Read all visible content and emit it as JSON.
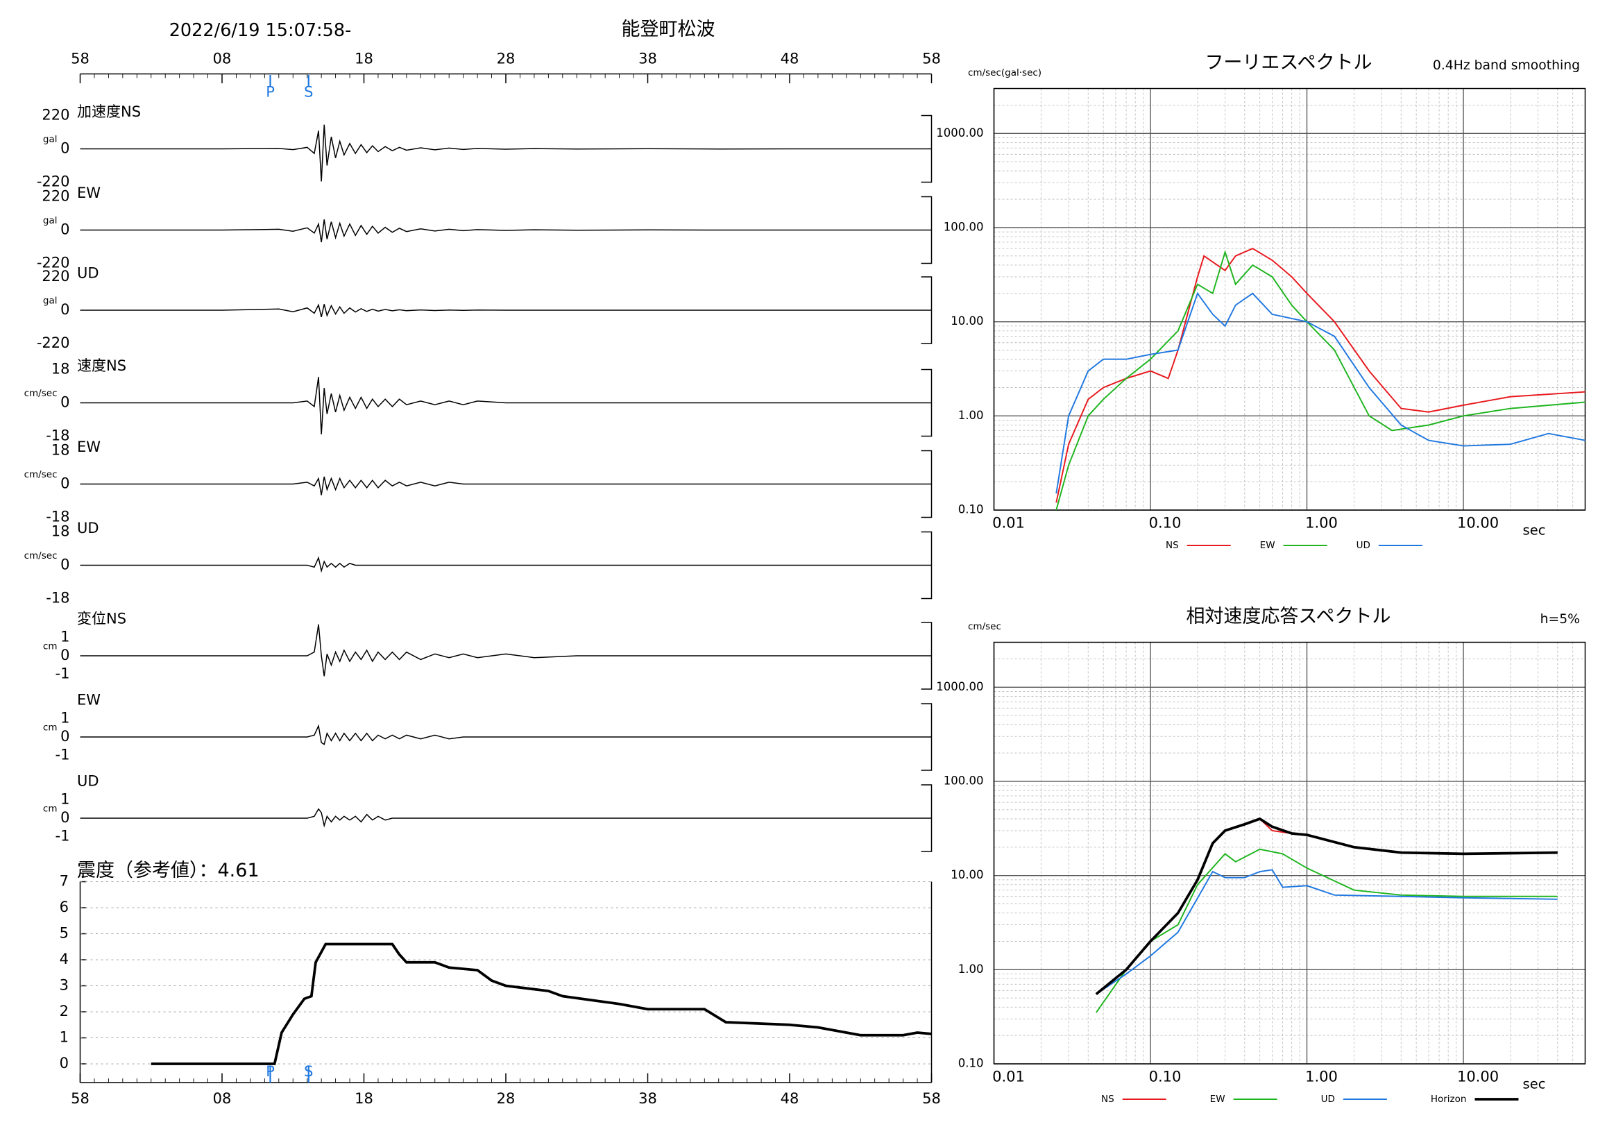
{
  "chart_data": [
    {
      "type": "waveform",
      "title": "2022/6/19 15:07:58-",
      "subtitle": "能登町松波",
      "xlim": [
        0,
        60
      ],
      "xticks": [
        {
          "value": 0,
          "label": "58"
        },
        {
          "value": 10,
          "label": "08"
        },
        {
          "value": 20,
          "label": "18"
        },
        {
          "value": 30,
          "label": "28"
        },
        {
          "value": 40,
          "label": "38"
        },
        {
          "value": 50,
          "label": "48"
        },
        {
          "value": 60,
          "label": "58"
        }
      ],
      "phase_marks": [
        {
          "value": 13.4,
          "label": "P"
        },
        {
          "value": 16.1,
          "label": "S"
        }
      ],
      "x": [
        0,
        10,
        14,
        15,
        16,
        16.5,
        16.8,
        17.0,
        17.2,
        17.4,
        17.7,
        18,
        18.3,
        18.6,
        19,
        19.4,
        19.8,
        20.2,
        20.6,
        21,
        21.5,
        22,
        22.5,
        23,
        24,
        25,
        26,
        27,
        28,
        30,
        32,
        35,
        40,
        45,
        50,
        55,
        60
      ],
      "panels": [
        {
          "label": "加速度NS",
          "unit": "gal",
          "ylim": [
            -220,
            220
          ],
          "yticks": [
            220,
            0,
            -220
          ],
          "values": [
            0,
            0,
            3,
            -5,
            10,
            -30,
            120,
            -215,
            160,
            -110,
            80,
            -60,
            50,
            -40,
            35,
            -30,
            28,
            -25,
            20,
            -18,
            15,
            -12,
            10,
            -9,
            7,
            -6,
            5,
            -4,
            3,
            -2,
            2,
            -1,
            1,
            -1,
            0,
            0,
            0
          ]
        },
        {
          "label": "EW",
          "unit": "gal",
          "ylim": [
            -220,
            220
          ],
          "yticks": [
            220,
            0,
            -220
          ],
          "values": [
            0,
            0,
            5,
            -8,
            15,
            -20,
            40,
            -80,
            70,
            -60,
            55,
            -50,
            45,
            -40,
            40,
            -35,
            30,
            -28,
            25,
            -20,
            18,
            -15,
            12,
            -10,
            8,
            -6,
            5,
            -4,
            3,
            -2,
            2,
            -1,
            1,
            0,
            0,
            0,
            0
          ]
        },
        {
          "label": "UD",
          "unit": "gal",
          "ylim": [
            -220,
            220
          ],
          "yticks": [
            220,
            0,
            -220
          ],
          "values": [
            0,
            0,
            8,
            -10,
            15,
            -20,
            35,
            -45,
            40,
            -35,
            30,
            -25,
            22,
            -20,
            15,
            -12,
            10,
            -8,
            7,
            -6,
            5,
            -4,
            3,
            -3,
            2,
            -2,
            1,
            -1,
            1,
            0,
            0,
            0,
            0,
            0,
            0,
            0,
            0
          ]
        },
        {
          "label": "速度NS",
          "unit": "cm/sec",
          "ylim": [
            -18,
            18
          ],
          "yticks": [
            18,
            0,
            -18
          ],
          "values": [
            0,
            0,
            0,
            0,
            1,
            -2,
            14,
            -17,
            8,
            -6,
            5,
            -5,
            4,
            -4,
            3,
            -3,
            3,
            -3,
            2,
            -2,
            2,
            -2,
            2,
            -1,
            1,
            -1,
            1,
            -1,
            1,
            0,
            0,
            0,
            0,
            0,
            0,
            0,
            0
          ]
        },
        {
          "label": "EW",
          "unit": "cm/sec",
          "ylim": [
            -18,
            18
          ],
          "yticks": [
            18,
            0,
            -18
          ],
          "values": [
            0,
            0,
            0,
            0,
            1,
            -1,
            3,
            -6,
            4,
            -3,
            3,
            -3,
            3,
            -2,
            2,
            -2,
            2,
            -2,
            2,
            -2,
            2,
            -1,
            1,
            -1,
            1,
            -1,
            1,
            0,
            0,
            0,
            0,
            0,
            0,
            0,
            0,
            0,
            0
          ]
        },
        {
          "label": "UD",
          "unit": "cm/sec",
          "ylim": [
            -18,
            18
          ],
          "yticks": [
            18,
            0,
            -18
          ],
          "values": [
            0,
            0,
            0,
            0,
            0,
            -1,
            4,
            -3,
            2,
            -1,
            1,
            -1,
            1,
            -1,
            1,
            0,
            0,
            0,
            0,
            0,
            0,
            0,
            0,
            0,
            0,
            0,
            0,
            0,
            0,
            0,
            0,
            0,
            0,
            0,
            0,
            0,
            0
          ]
        },
        {
          "label": "変位NS",
          "unit": "cm",
          "ylim": [
            -1.8,
            1.8
          ],
          "yticks": [
            1,
            0,
            -1
          ],
          "values": [
            0,
            0,
            0,
            0,
            0,
            0.2,
            1.7,
            0,
            -1.1,
            0.1,
            -0.5,
            0.2,
            -0.3,
            0.3,
            -0.3,
            0.2,
            -0.2,
            0.3,
            -0.3,
            0.2,
            -0.2,
            0.2,
            -0.2,
            0.2,
            -0.2,
            0.1,
            -0.1,
            0.1,
            -0.1,
            0.1,
            -0.1,
            0,
            0,
            0,
            0,
            0,
            0
          ]
        },
        {
          "label": "EW",
          "unit": "cm",
          "ylim": [
            -1.8,
            1.8
          ],
          "yticks": [
            1,
            0,
            -1
          ],
          "values": [
            0,
            0,
            0,
            0,
            0,
            0.1,
            0.6,
            -0.3,
            -0.4,
            0.2,
            -0.2,
            0.2,
            -0.2,
            0.2,
            -0.2,
            0.2,
            -0.2,
            0.2,
            -0.2,
            0.1,
            -0.1,
            0.1,
            -0.1,
            0.1,
            -0.1,
            0.1,
            -0.1,
            0,
            0,
            0,
            0,
            0,
            0,
            0,
            0,
            0,
            0
          ]
        },
        {
          "label": "UD",
          "unit": "cm",
          "ylim": [
            -1.8,
            1.8
          ],
          "yticks": [
            1,
            0,
            -1
          ],
          "values": [
            0,
            0,
            0,
            0,
            0,
            0.1,
            0.5,
            0.3,
            -0.4,
            0.1,
            -0.2,
            0.1,
            -0.1,
            0.1,
            -0.1,
            0.1,
            -0.2,
            0.2,
            -0.1,
            0.1,
            -0.1,
            0,
            0,
            0,
            0,
            0,
            0,
            0,
            0,
            0,
            0,
            0,
            0,
            0,
            0,
            0,
            0
          ]
        }
      ]
    },
    {
      "type": "line",
      "title": "震度（参考値）：4.61",
      "color": "#000000",
      "xlim": [
        0,
        60
      ],
      "xticks": [
        {
          "value": 0,
          "label": "58"
        },
        {
          "value": 10,
          "label": "08"
        },
        {
          "value": 20,
          "label": "18"
        },
        {
          "value": 30,
          "label": "28"
        },
        {
          "value": 40,
          "label": "38"
        },
        {
          "value": 50,
          "label": "48"
        },
        {
          "value": 60,
          "label": "58"
        }
      ],
      "phase_marks": [
        {
          "value": 13.4,
          "label": "P"
        },
        {
          "value": 16.1,
          "label": "S"
        }
      ],
      "ylim": [
        0,
        7
      ],
      "yticks": [
        0,
        1,
        2,
        3,
        4,
        5,
        6,
        7
      ],
      "grid": true,
      "x": [
        5,
        13.7,
        14.2,
        15,
        15.8,
        16.3,
        16.6,
        17,
        17.3,
        22,
        22.5,
        23,
        25,
        26,
        28,
        29,
        30,
        33,
        34,
        38,
        40,
        44,
        45.5,
        50,
        52,
        55,
        58,
        59,
        60
      ],
      "values": [
        0,
        0,
        1.2,
        1.9,
        2.5,
        2.6,
        3.9,
        4.3,
        4.6,
        4.6,
        4.2,
        3.9,
        3.9,
        3.7,
        3.6,
        3.2,
        3.0,
        2.8,
        2.6,
        2.3,
        2.1,
        2.1,
        1.6,
        1.5,
        1.4,
        1.1,
        1.1,
        1.2,
        1.15
      ]
    },
    {
      "type": "spectrum",
      "title": "フーリエスペクトル",
      "subtitle": "0.4Hz band smoothing",
      "y_label": "cm/sec(gal·sec)",
      "x_label": "sec",
      "log_x": true,
      "log_y": true,
      "grid": true,
      "xlim": [
        0.01,
        60
      ],
      "xticks": [
        {
          "value": 0.01,
          "label": "0.01"
        },
        {
          "value": 0.1,
          "label": "0.10"
        },
        {
          "value": 1,
          "label": "1.00"
        },
        {
          "value": 10,
          "label": "10.00"
        }
      ],
      "ylim": [
        0.1,
        3000
      ],
      "yticks": [
        {
          "value": 0.1,
          "label": "0.10"
        },
        {
          "value": 1,
          "label": "1.00"
        },
        {
          "value": 10,
          "label": "10.00"
        },
        {
          "value": 100,
          "label": "100.00"
        },
        {
          "value": 1000,
          "label": "1000.00"
        }
      ],
      "series": [
        {
          "name": "NS",
          "color": "#e8191e",
          "x": [
            0.025,
            0.03,
            0.04,
            0.05,
            0.07,
            0.1,
            0.13,
            0.15,
            0.2,
            0.22,
            0.3,
            0.35,
            0.45,
            0.6,
            0.8,
            1.0,
            1.5,
            2.5,
            4,
            6,
            10,
            20,
            60
          ],
          "values": [
            0.12,
            0.5,
            1.5,
            2,
            2.5,
            3,
            2.5,
            5,
            30,
            50,
            35,
            50,
            60,
            45,
            30,
            20,
            10,
            3,
            1.2,
            1.1,
            1.3,
            1.6,
            1.8
          ]
        },
        {
          "name": "EW",
          "color": "#1fb51f",
          "x": [
            0.025,
            0.03,
            0.04,
            0.05,
            0.07,
            0.1,
            0.15,
            0.2,
            0.25,
            0.3,
            0.35,
            0.45,
            0.6,
            0.8,
            1,
            1.5,
            2.5,
            3.5,
            6,
            10,
            20,
            60
          ],
          "values": [
            0.1,
            0.3,
            1,
            1.5,
            2.5,
            4,
            8,
            25,
            20,
            55,
            25,
            40,
            30,
            15,
            10,
            5,
            1,
            0.7,
            0.8,
            1,
            1.2,
            1.4
          ]
        },
        {
          "name": "UD",
          "color": "#1f78e0",
          "x": [
            0.025,
            0.03,
            0.04,
            0.05,
            0.07,
            0.1,
            0.15,
            0.2,
            0.25,
            0.3,
            0.35,
            0.45,
            0.6,
            1,
            1.5,
            2.5,
            4,
            6,
            10,
            20,
            35,
            60
          ],
          "values": [
            0.15,
            1,
            3,
            4,
            4,
            4.5,
            5,
            20,
            12,
            9,
            15,
            20,
            12,
            10,
            7,
            2,
            0.8,
            0.55,
            0.48,
            0.5,
            0.65,
            0.55
          ]
        }
      ]
    },
    {
      "type": "spectrum",
      "title": "相対速度応答スペクトル",
      "subtitle": "h=5%",
      "y_label": "cm/sec",
      "x_label": "sec",
      "log_x": true,
      "log_y": true,
      "grid": true,
      "xlim": [
        0.01,
        60
      ],
      "xticks": [
        {
          "value": 0.01,
          "label": "0.01"
        },
        {
          "value": 0.1,
          "label": "0.10"
        },
        {
          "value": 1,
          "label": "1.00"
        },
        {
          "value": 10,
          "label": "10.00"
        }
      ],
      "ylim": [
        0.1,
        3000
      ],
      "yticks": [
        {
          "value": 0.1,
          "label": "0.10"
        },
        {
          "value": 1,
          "label": "1.00"
        },
        {
          "value": 10,
          "label": "10.00"
        },
        {
          "value": 100,
          "label": "100.00"
        },
        {
          "value": 1000,
          "label": "1000.00"
        }
      ],
      "series": [
        {
          "name": "NS",
          "color": "#e8191e",
          "x": [
            0.045,
            0.07,
            0.1,
            0.15,
            0.2,
            0.25,
            0.3,
            0.4,
            0.5,
            0.6,
            0.8,
            1,
            2,
            4,
            10,
            40
          ],
          "values": [
            0.55,
            1,
            2,
            4,
            9,
            22,
            30,
            35,
            40,
            30,
            28,
            27,
            20,
            17.5,
            17,
            17.5
          ]
        },
        {
          "name": "EW",
          "color": "#1fb51f",
          "x": [
            0.045,
            0.07,
            0.1,
            0.15,
            0.2,
            0.3,
            0.35,
            0.5,
            0.7,
            1,
            2,
            4,
            10,
            40
          ],
          "values": [
            0.35,
            1,
            2,
            3,
            8,
            17,
            14,
            19,
            17,
            12,
            7,
            6.2,
            6,
            6
          ]
        },
        {
          "name": "UD",
          "color": "#1f78e0",
          "x": [
            0.045,
            0.07,
            0.1,
            0.15,
            0.25,
            0.3,
            0.4,
            0.5,
            0.6,
            0.7,
            1,
            1.5,
            4,
            10,
            40
          ],
          "values": [
            0.55,
            0.9,
            1.4,
            2.5,
            11,
            9.5,
            9.5,
            11,
            11.5,
            7.5,
            7.8,
            6.2,
            6,
            5.8,
            5.6
          ]
        },
        {
          "name": "Horizon",
          "color": "#000000",
          "x": [
            0.045,
            0.07,
            0.1,
            0.15,
            0.2,
            0.25,
            0.3,
            0.4,
            0.5,
            0.6,
            0.8,
            1,
            2,
            4,
            10,
            40
          ],
          "values": [
            0.55,
            1,
            2,
            4,
            9,
            22,
            30,
            35,
            40,
            33,
            28,
            27,
            20,
            17.5,
            17,
            17.5
          ]
        }
      ]
    }
  ]
}
